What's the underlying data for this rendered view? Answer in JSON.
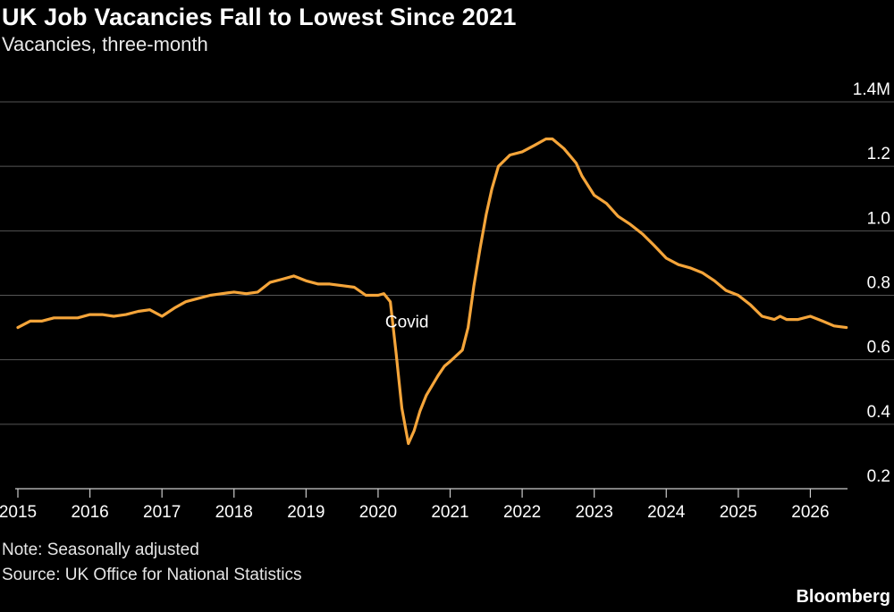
{
  "title": "UK Job Vacancies Fall to Lowest Since 2021",
  "subtitle": "Vacancies, three-month",
  "note": "Note: Seasonally adjusted",
  "source": "Source: UK Office for National Statistics",
  "brand": "Bloomberg",
  "colors": {
    "background": "#000000",
    "line": "#f5a53a",
    "grid": "#555555",
    "text": "#ffffff"
  },
  "chart_data": {
    "type": "line",
    "title": "UK Job Vacancies Fall to Lowest Since 2021",
    "subtitle": "Vacancies, three-month",
    "xlabel": "",
    "ylabel": "",
    "x_ticks": [
      "2015",
      "2016",
      "2017",
      "2018",
      "2019",
      "2020",
      "2021",
      "2022",
      "2023",
      "2024",
      "2025",
      "2026"
    ],
    "y_ticks": [
      "0.2",
      "0.4",
      "0.6",
      "0.8",
      "1.0",
      "1.2",
      "1.4M"
    ],
    "y_tick_values": [
      0.2,
      0.4,
      0.6,
      0.8,
      1.0,
      1.2,
      1.4
    ],
    "ylim": [
      0.2,
      1.4
    ],
    "xlim": [
      2015,
      2026.5
    ],
    "grid": true,
    "legend": "none",
    "annotations": [
      {
        "text": "Covid",
        "x": 2020.4,
        "y": 0.7
      }
    ],
    "series": [
      {
        "points": [
          [
            2015.0,
            0.7
          ],
          [
            2015.17,
            0.72
          ],
          [
            2015.33,
            0.72
          ],
          [
            2015.5,
            0.73
          ],
          [
            2015.67,
            0.73
          ],
          [
            2015.83,
            0.73
          ],
          [
            2016.0,
            0.74
          ],
          [
            2016.17,
            0.74
          ],
          [
            2016.33,
            0.735
          ],
          [
            2016.5,
            0.74
          ],
          [
            2016.67,
            0.75
          ],
          [
            2016.83,
            0.755
          ],
          [
            2017.0,
            0.735
          ],
          [
            2017.17,
            0.76
          ],
          [
            2017.33,
            0.78
          ],
          [
            2017.5,
            0.79
          ],
          [
            2017.67,
            0.8
          ],
          [
            2017.83,
            0.805
          ],
          [
            2018.0,
            0.81
          ],
          [
            2018.17,
            0.805
          ],
          [
            2018.33,
            0.81
          ],
          [
            2018.5,
            0.84
          ],
          [
            2018.67,
            0.85
          ],
          [
            2018.83,
            0.86
          ],
          [
            2019.0,
            0.845
          ],
          [
            2019.17,
            0.835
          ],
          [
            2019.33,
            0.835
          ],
          [
            2019.5,
            0.83
          ],
          [
            2019.67,
            0.825
          ],
          [
            2019.83,
            0.8
          ],
          [
            2020.0,
            0.8
          ],
          [
            2020.08,
            0.805
          ],
          [
            2020.17,
            0.78
          ],
          [
            2020.25,
            0.62
          ],
          [
            2020.33,
            0.45
          ],
          [
            2020.42,
            0.34
          ],
          [
            2020.5,
            0.38
          ],
          [
            2020.58,
            0.44
          ],
          [
            2020.67,
            0.49
          ],
          [
            2020.83,
            0.55
          ],
          [
            2020.92,
            0.58
          ],
          [
            2021.0,
            0.595
          ],
          [
            2021.17,
            0.63
          ],
          [
            2021.25,
            0.7
          ],
          [
            2021.33,
            0.83
          ],
          [
            2021.42,
            0.95
          ],
          [
            2021.5,
            1.05
          ],
          [
            2021.58,
            1.13
          ],
          [
            2021.67,
            1.2
          ],
          [
            2021.83,
            1.235
          ],
          [
            2022.0,
            1.245
          ],
          [
            2022.17,
            1.265
          ],
          [
            2022.33,
            1.285
          ],
          [
            2022.42,
            1.285
          ],
          [
            2022.58,
            1.255
          ],
          [
            2022.75,
            1.21
          ],
          [
            2022.83,
            1.17
          ],
          [
            2023.0,
            1.11
          ],
          [
            2023.17,
            1.085
          ],
          [
            2023.33,
            1.045
          ],
          [
            2023.5,
            1.02
          ],
          [
            2023.67,
            0.99
          ],
          [
            2023.83,
            0.955
          ],
          [
            2024.0,
            0.915
          ],
          [
            2024.17,
            0.895
          ],
          [
            2024.33,
            0.885
          ],
          [
            2024.5,
            0.87
          ],
          [
            2024.67,
            0.845
          ],
          [
            2024.83,
            0.815
          ],
          [
            2025.0,
            0.8
          ],
          [
            2025.17,
            0.77
          ],
          [
            2025.33,
            0.735
          ],
          [
            2025.5,
            0.725
          ],
          [
            2025.58,
            0.735
          ],
          [
            2025.67,
            0.725
          ],
          [
            2025.83,
            0.725
          ],
          [
            2026.0,
            0.735
          ],
          [
            2026.17,
            0.72
          ],
          [
            2026.33,
            0.705
          ],
          [
            2026.5,
            0.7
          ]
        ]
      }
    ]
  }
}
